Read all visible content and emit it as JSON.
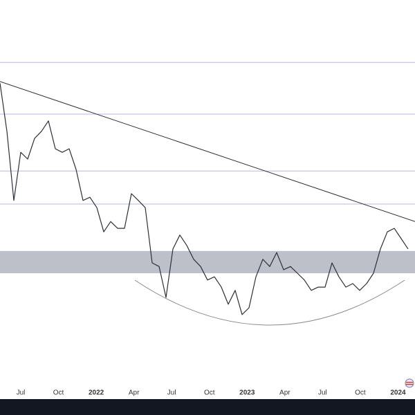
{
  "chart_data": {
    "type": "line",
    "x": [
      -1.65,
      -1.1,
      -0.55,
      0,
      0.55,
      1.1,
      1.65,
      2.2,
      2.75,
      3.3,
      3.85,
      4.4,
      4.95,
      5.5,
      6.05,
      6.6,
      7.15,
      7.7,
      8.25,
      8.8,
      9.35,
      9.9,
      10.45,
      11,
      11.55,
      12.1,
      12.65,
      13.2,
      13.75,
      14.3,
      14.85,
      15.4,
      15.95,
      16.5,
      17.05,
      17.6,
      18.15,
      18.7,
      19.25,
      19.8,
      20.35,
      20.9,
      21.45,
      22,
      22.55,
      23.1,
      23.65,
      24.2,
      24.75,
      25.3,
      25.85,
      26.4,
      26.95,
      27.5,
      28.05,
      28.6,
      29.15,
      29.7,
      30.25,
      30.8
    ],
    "values": [
      79.1,
      67.0,
      49.6,
      61.7,
      60.0,
      65.2,
      67.0,
      69.6,
      62.6,
      61.7,
      62.6,
      57.4,
      49.6,
      50.4,
      47.8,
      41.7,
      44.3,
      42.6,
      42.6,
      51.3,
      49.6,
      47.8,
      33.9,
      33.0,
      25.2,
      37.4,
      40.9,
      38.3,
      34.8,
      33.0,
      29.6,
      30.4,
      27.8,
      23.5,
      27.0,
      20.9,
      22.6,
      30.4,
      34.8,
      33.0,
      36.5,
      32.2,
      33.0,
      31.3,
      29.6,
      27.0,
      27.8,
      27.8,
      33.9,
      30.4,
      27.8,
      28.7,
      27.0,
      28.7,
      31.3,
      37.4,
      41.7,
      42.6,
      40.0,
      37.4
    ],
    "color": "#2a2e39",
    "xlim": [
      -1.65,
      31.35
    ],
    "xticks": [
      {
        "value": 0,
        "label": "Jul"
      },
      {
        "value": 3,
        "label": "Oct"
      },
      {
        "value": 6,
        "label": "2022"
      },
      {
        "value": 9,
        "label": "Apr"
      },
      {
        "value": 12,
        "label": "Jul"
      },
      {
        "value": 15,
        "label": "Oct"
      },
      {
        "value": 18,
        "label": "2023"
      },
      {
        "value": 21,
        "label": "Apr"
      },
      {
        "value": 24,
        "label": "Jul"
      },
      {
        "value": 27,
        "label": "Oct"
      },
      {
        "value": 30,
        "label": "2024"
      }
    ],
    "ylim": [
      0,
      100
    ],
    "levels": [
      84.3,
      71.3,
      57.0,
      48.7
    ],
    "zone": [
      31.3,
      36.9
    ],
    "trendline": {
      "x": [
        -1.65,
        31.35
      ],
      "y": [
        79.5,
        44.3
      ]
    }
  }
}
